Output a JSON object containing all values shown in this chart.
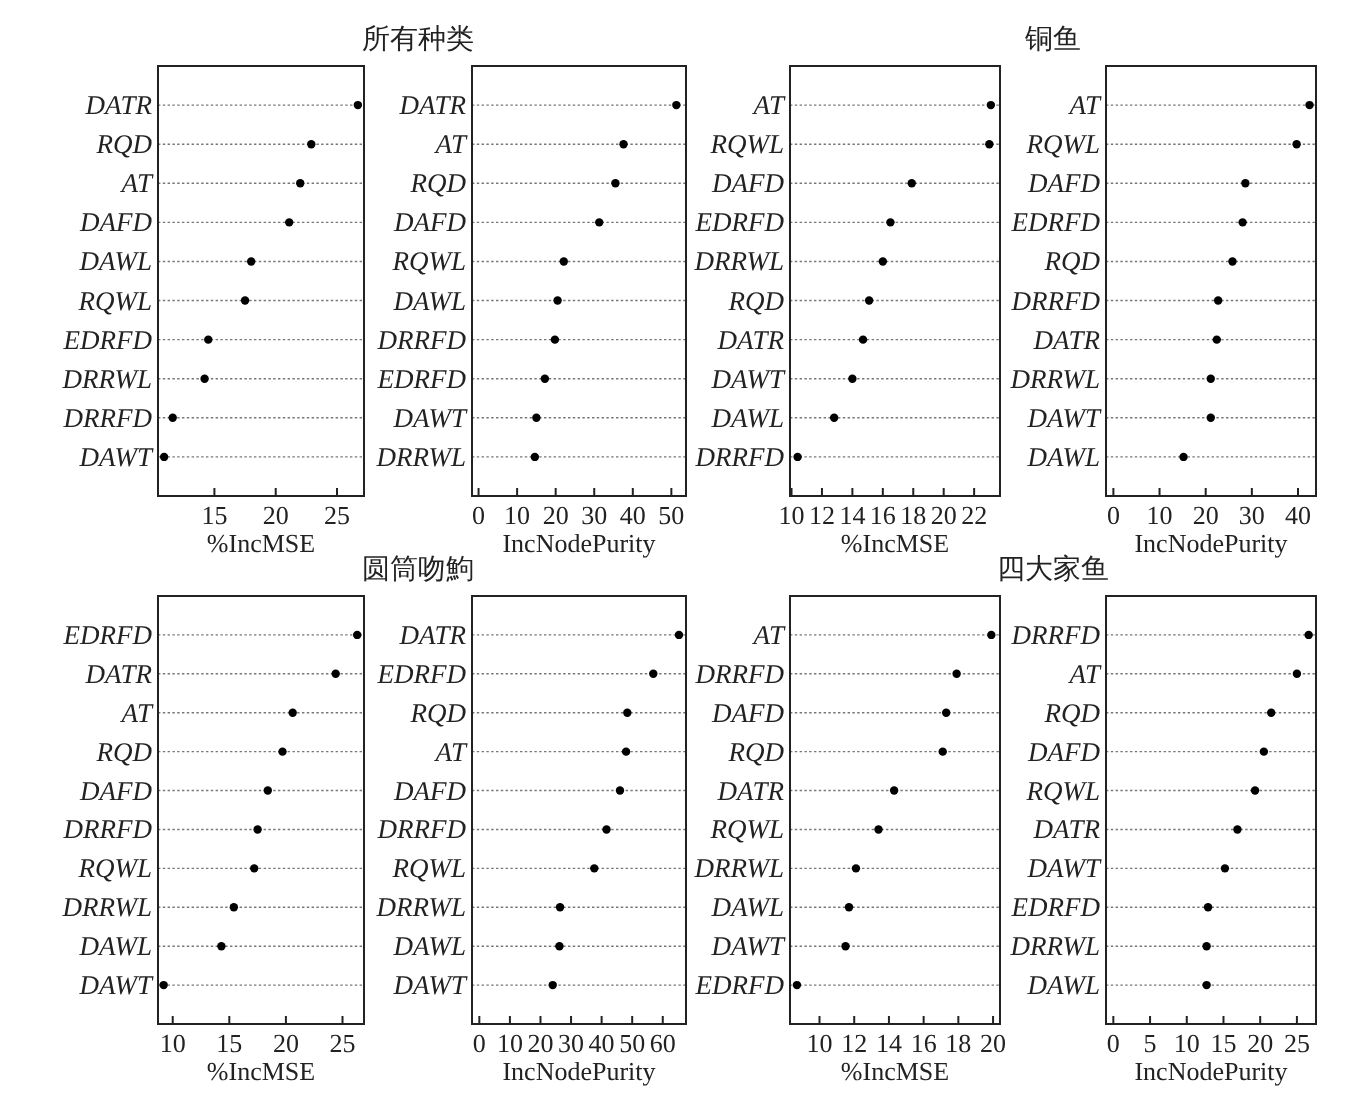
{
  "chart_data": [
    {
      "type": "scatter",
      "orientation": "horizontal",
      "title": "所有种类",
      "xlabel": "%IncMSE",
      "color": "#000000",
      "marker": "circle",
      "grid": "y",
      "categories": [
        "DATR",
        "RQD",
        "AT",
        "DAFD",
        "DAWL",
        "RQWL",
        "EDRFD",
        "DRRWL",
        "DRRFD",
        "DAWT"
      ],
      "values": [
        26.7,
        22.9,
        22.0,
        21.1,
        18.0,
        17.5,
        14.5,
        14.2,
        11.6,
        10.9
      ],
      "xlim": [
        10.4,
        27.2
      ],
      "xticks": [
        15,
        20,
        25
      ]
    },
    {
      "type": "scatter",
      "orientation": "horizontal",
      "xlabel": "IncNodePurity",
      "color": "#000000",
      "marker": "circle",
      "grid": "y",
      "categories": [
        "DATR",
        "AT",
        "RQD",
        "DAFD",
        "RQWL",
        "DAWL",
        "DRRFD",
        "EDRFD",
        "DAWT",
        "DRRWL"
      ],
      "values": [
        51.3,
        37.6,
        35.5,
        31.3,
        22.1,
        20.5,
        19.8,
        17.2,
        15.0,
        14.6
      ],
      "xlim": [
        -1.7,
        53.8
      ],
      "xticks": [
        0,
        10,
        20,
        30,
        40,
        50
      ]
    },
    {
      "type": "scatter",
      "orientation": "horizontal",
      "xlabel": "%IncMSE",
      "color": "#000000",
      "marker": "circle",
      "grid": "y",
      "categories": [
        "AT",
        "RQWL",
        "DAFD",
        "EDRFD",
        "DRRWL",
        "RQD",
        "DATR",
        "DAWT",
        "DAWL",
        "DRRFD"
      ],
      "values": [
        23.1,
        23.0,
        17.9,
        16.5,
        16.0,
        15.1,
        14.7,
        14.0,
        12.8,
        10.4
      ],
      "xlim": [
        9.9,
        23.7
      ],
      "xticks": [
        10,
        12,
        14,
        16,
        18,
        20,
        22
      ]
    },
    {
      "type": "scatter",
      "orientation": "horizontal",
      "title": "铜鱼",
      "xlabel": "IncNodePurity",
      "color": "#000000",
      "marker": "circle",
      "grid": "y",
      "categories": [
        "AT",
        "RQWL",
        "DAFD",
        "EDRFD",
        "RQD",
        "DRRFD",
        "DATR",
        "DRRWL",
        "DAWT",
        "DAWL"
      ],
      "values": [
        42.5,
        39.7,
        28.6,
        28.0,
        25.8,
        22.7,
        22.4,
        21.1,
        21.1,
        15.2
      ],
      "xlim": [
        -1.6,
        43.9
      ],
      "xticks": [
        0,
        10,
        20,
        30,
        40
      ]
    },
    {
      "type": "scatter",
      "orientation": "horizontal",
      "title": "圆筒吻鮈",
      "xlabel": "%IncMSE",
      "color": "#000000",
      "marker": "circle",
      "grid": "y",
      "categories": [
        "EDRFD",
        "DATR",
        "AT",
        "RQD",
        "DAFD",
        "DRRFD",
        "RQWL",
        "DRRWL",
        "DAWL",
        "DAWT"
      ],
      "values": [
        26.3,
        24.4,
        20.6,
        19.7,
        18.4,
        17.5,
        17.2,
        15.4,
        14.3,
        9.2
      ],
      "xlim": [
        8.7,
        26.9
      ],
      "xticks": [
        10,
        15,
        20,
        25
      ]
    },
    {
      "type": "scatter",
      "orientation": "horizontal",
      "xlabel": "IncNodePurity",
      "color": "#000000",
      "marker": "circle",
      "grid": "y",
      "categories": [
        "DATR",
        "EDRFD",
        "RQD",
        "AT",
        "DAFD",
        "DRRFD",
        "RQWL",
        "DRRWL",
        "DAWL",
        "DAWT"
      ],
      "values": [
        65.3,
        56.9,
        48.4,
        48.0,
        46.0,
        41.6,
        37.6,
        26.4,
        26.2,
        24.0
      ],
      "xlim": [
        -2.4,
        67.6
      ],
      "xticks": [
        0,
        10,
        20,
        30,
        40,
        50,
        60
      ]
    },
    {
      "type": "scatter",
      "orientation": "horizontal",
      "title": "四大家鱼",
      "xlabel": "%IncMSE",
      "color": "#000000",
      "marker": "circle",
      "grid": "y",
      "categories": [
        "AT",
        "DRRFD",
        "DAFD",
        "RQD",
        "DATR",
        "RQWL",
        "DRRWL",
        "DAWL",
        "DAWT",
        "EDRFD"
      ],
      "values": [
        19.9,
        17.9,
        17.3,
        17.1,
        14.3,
        13.4,
        12.1,
        11.7,
        11.5,
        8.7
      ],
      "xlim": [
        8.3,
        20.4
      ],
      "xticks": [
        10,
        12,
        14,
        16,
        18,
        20
      ]
    },
    {
      "type": "scatter",
      "orientation": "horizontal",
      "xlabel": "IncNodePurity",
      "color": "#000000",
      "marker": "circle",
      "grid": "y",
      "categories": [
        "DRRFD",
        "AT",
        "RQD",
        "DAFD",
        "RQWL",
        "DATR",
        "DAWT",
        "EDRFD",
        "DRRWL",
        "DAWL"
      ],
      "values": [
        26.6,
        25.0,
        21.5,
        20.5,
        19.3,
        16.9,
        15.2,
        12.9,
        12.7,
        12.7
      ],
      "xlim": [
        -1.0,
        27.6
      ],
      "xticks": [
        0,
        5,
        10,
        15,
        20,
        25
      ]
    }
  ]
}
